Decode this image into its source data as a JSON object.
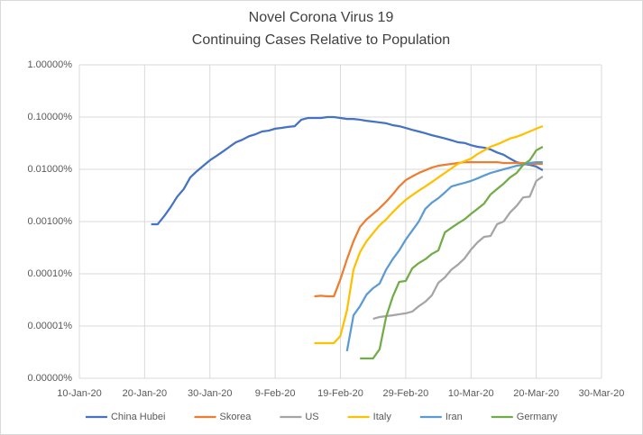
{
  "chart_data": {
    "type": "line",
    "title": "Novel Corona Virus 19",
    "subtitle": "Continuing Cases Relative to Population",
    "log_scale": true,
    "grid": true,
    "legend": "bottom",
    "x": [
      "2020-01-21",
      "2020-01-22",
      "2020-01-23",
      "2020-01-24",
      "2020-01-25",
      "2020-01-26",
      "2020-01-27",
      "2020-01-28",
      "2020-01-29",
      "2020-01-30",
      "2020-01-31",
      "2020-02-01",
      "2020-02-02",
      "2020-02-03",
      "2020-02-04",
      "2020-02-05",
      "2020-02-06",
      "2020-02-07",
      "2020-02-08",
      "2020-02-09",
      "2020-02-10",
      "2020-02-11",
      "2020-02-12",
      "2020-02-13",
      "2020-02-14",
      "2020-02-15",
      "2020-02-16",
      "2020-02-17",
      "2020-02-18",
      "2020-02-19",
      "2020-02-20",
      "2020-02-21",
      "2020-02-22",
      "2020-02-23",
      "2020-02-24",
      "2020-02-25",
      "2020-02-26",
      "2020-02-27",
      "2020-02-28",
      "2020-02-29",
      "2020-03-01",
      "2020-03-02",
      "2020-03-03",
      "2020-03-04",
      "2020-03-05",
      "2020-03-06",
      "2020-03-07",
      "2020-03-08",
      "2020-03-09",
      "2020-03-10",
      "2020-03-11",
      "2020-03-12",
      "2020-03-13",
      "2020-03-14",
      "2020-03-15",
      "2020-03-16",
      "2020-03-17",
      "2020-03-18",
      "2020-03-19",
      "2020-03-20",
      "2020-03-21"
    ],
    "xlim": [
      "2020-01-10",
      "2020-03-30"
    ],
    "xticks": [
      {
        "value": "2020-01-10",
        "label": "10-Jan-20"
      },
      {
        "value": "2020-01-20",
        "label": "20-Jan-20"
      },
      {
        "value": "2020-01-30",
        "label": "30-Jan-20"
      },
      {
        "value": "2020-02-09",
        "label": "9-Feb-20"
      },
      {
        "value": "2020-02-19",
        "label": "19-Feb-20"
      },
      {
        "value": "2020-02-29",
        "label": "29-Feb-20"
      },
      {
        "value": "2020-03-10",
        "label": "10-Mar-20"
      },
      {
        "value": "2020-03-20",
        "label": "20-Mar-20"
      },
      {
        "value": "2020-03-30",
        "label": "30-Mar-20"
      }
    ],
    "ylim": [
      1e-06,
      1
    ],
    "yticks": [
      {
        "value": 1e-06,
        "label": "0.00000%"
      },
      {
        "value": 1e-05,
        "label": "0.00001%"
      },
      {
        "value": 0.0001,
        "label": "0.00010%"
      },
      {
        "value": 0.001,
        "label": "0.00100%"
      },
      {
        "value": 0.01,
        "label": "0.01000%"
      },
      {
        "value": 0.1,
        "label": "0.10000%"
      },
      {
        "value": 1,
        "label": "1.00000%"
      }
    ],
    "series": [
      {
        "name": "China Hubei",
        "color": "#4472c4",
        "values": [
          0.00089,
          0.00089,
          0.00127,
          0.0019,
          0.003,
          0.0042,
          0.007,
          0.0092,
          0.0117,
          0.0149,
          0.018,
          0.022,
          0.027,
          0.033,
          0.037,
          0.043,
          0.047,
          0.053,
          0.055,
          0.06,
          0.062,
          0.065,
          0.067,
          0.089,
          0.096,
          0.096,
          0.096,
          0.1,
          0.1,
          0.096,
          0.092,
          0.092,
          0.089,
          0.085,
          0.082,
          0.079,
          0.076,
          0.07,
          0.067,
          0.062,
          0.057,
          0.053,
          0.049,
          0.045,
          0.042,
          0.039,
          0.036,
          0.033,
          0.032,
          0.029,
          0.027,
          0.026,
          0.024,
          0.021,
          0.019,
          0.016,
          0.0137,
          0.0127,
          0.0122,
          0.0113,
          0.0096
        ]
      },
      {
        "name": "Skorea",
        "color": "#ed7d31",
        "values": [
          null,
          null,
          null,
          null,
          null,
          null,
          null,
          null,
          null,
          null,
          null,
          null,
          null,
          null,
          null,
          null,
          null,
          null,
          null,
          null,
          null,
          null,
          null,
          null,
          null,
          3.7e-05,
          3.8e-05,
          3.7e-05,
          3.7e-05,
          7.9e-05,
          0.00019,
          0.00042,
          0.00079,
          0.0011,
          0.0014,
          0.0018,
          0.0024,
          0.0033,
          0.0047,
          0.0062,
          0.0073,
          0.0085,
          0.0096,
          0.0108,
          0.0117,
          0.0122,
          0.0127,
          0.0132,
          0.0137,
          0.0137,
          0.0137,
          0.0137,
          0.0137,
          0.0137,
          0.0132,
          0.0132,
          0.0132,
          0.0132,
          0.0127,
          0.0127,
          0.0127
        ]
      },
      {
        "name": "US",
        "color": "#a5a5a5",
        "values": [
          null,
          null,
          null,
          null,
          null,
          null,
          null,
          null,
          null,
          null,
          null,
          null,
          null,
          null,
          null,
          null,
          null,
          null,
          null,
          null,
          null,
          null,
          null,
          null,
          null,
          null,
          null,
          null,
          null,
          null,
          null,
          null,
          null,
          null,
          1.37e-05,
          1.49e-05,
          1.55e-05,
          1.6e-05,
          1.68e-05,
          1.75e-05,
          1.89e-05,
          2.39e-05,
          2.92e-05,
          3.86e-05,
          6.73e-05,
          8.53e-05,
          0.00012,
          0.000149,
          0.000196,
          0.00029,
          0.0004,
          0.00051,
          0.00053,
          0.00089,
          0.001,
          0.0015,
          0.002,
          0.0029,
          0.003,
          0.006,
          0.0073
        ]
      },
      {
        "name": "Italy",
        "color": "#ffc000",
        "values": [
          null,
          null,
          null,
          null,
          null,
          null,
          null,
          null,
          null,
          null,
          null,
          null,
          null,
          null,
          null,
          null,
          null,
          null,
          null,
          null,
          null,
          null,
          null,
          null,
          null,
          4.7e-06,
          4.7e-06,
          4.7e-06,
          4.7e-06,
          6.5e-06,
          2e-05,
          0.00012,
          0.00026,
          0.00042,
          0.0006,
          0.00085,
          0.0011,
          0.0015,
          0.002,
          0.0026,
          0.0032,
          0.0039,
          0.0047,
          0.0057,
          0.007,
          0.0085,
          0.0104,
          0.0127,
          0.0143,
          0.016,
          0.0196,
          0.023,
          0.027,
          0.03,
          0.034,
          0.039,
          0.042,
          0.047,
          0.053,
          0.06,
          0.067
        ]
      },
      {
        "name": "Iran",
        "color": "#5b9bd5",
        "values": [
          null,
          null,
          null,
          null,
          null,
          null,
          null,
          null,
          null,
          null,
          null,
          null,
          null,
          null,
          null,
          null,
          null,
          null,
          null,
          null,
          null,
          null,
          null,
          null,
          null,
          null,
          null,
          null,
          null,
          null,
          3.3e-06,
          1.6e-05,
          2.4e-05,
          4e-05,
          5.3e-05,
          6.5e-05,
          0.00012,
          0.00019,
          0.00028,
          0.00045,
          0.00067,
          0.001,
          0.00175,
          0.0023,
          0.0028,
          0.0036,
          0.0047,
          0.0051,
          0.0055,
          0.006,
          0.0067,
          0.0076,
          0.0085,
          0.0092,
          0.01,
          0.0108,
          0.0117,
          0.0122,
          0.0132,
          0.0137,
          0.0137
        ]
      },
      {
        "name": "Germany",
        "color": "#70ad47",
        "values": [
          null,
          null,
          null,
          null,
          null,
          null,
          null,
          null,
          null,
          null,
          null,
          null,
          null,
          null,
          null,
          null,
          null,
          null,
          null,
          null,
          null,
          null,
          null,
          null,
          null,
          null,
          null,
          null,
          null,
          null,
          null,
          null,
          2.4e-06,
          2.4e-06,
          2.4e-06,
          3.6e-06,
          1.49e-05,
          3.6e-05,
          7e-05,
          7.3e-05,
          0.000127,
          0.00016,
          0.00019,
          0.00024,
          0.00028,
          0.00062,
          0.00076,
          0.00092,
          0.0011,
          0.0014,
          0.00175,
          0.0022,
          0.0033,
          0.0042,
          0.0053,
          0.007,
          0.0085,
          0.0122,
          0.0149,
          0.023,
          0.027
        ]
      }
    ]
  }
}
